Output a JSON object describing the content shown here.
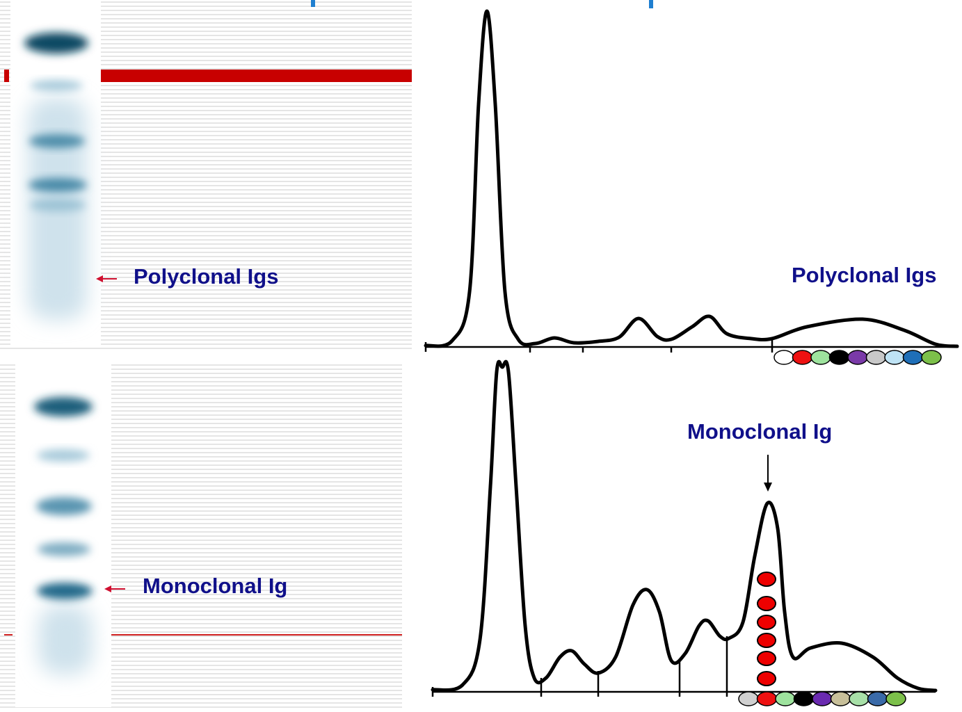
{
  "top": {
    "gel_label": "Polyclonal Igs",
    "curve_label": "Polyclonal Igs"
  },
  "bottom": {
    "gel_label": "Monoclonal Ig",
    "curve_label": "Monoclonal Ig"
  }
}
